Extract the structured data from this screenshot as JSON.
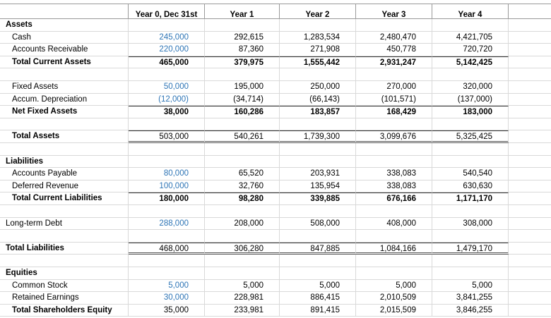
{
  "header": [
    "Year 0, Dec 31st",
    "Year 1",
    "Year 2",
    "Year 3",
    "Year 4"
  ],
  "rows": [
    {
      "label": "Assets"
    },
    {
      "label": "Cash",
      "values": [
        "245,000",
        "292,615",
        "1,283,534",
        "2,480,470",
        "4,421,705"
      ]
    },
    {
      "label": "Accounts Receivable",
      "values": [
        "220,000",
        "87,360",
        "271,908",
        "450,778",
        "720,720"
      ]
    },
    {
      "label": "Total Current Assets",
      "values": [
        "465,000",
        "379,975",
        "1,555,442",
        "2,931,247",
        "5,142,425"
      ]
    },
    {
      "label": "Fixed Assets",
      "values": [
        "50,000",
        "195,000",
        "250,000",
        "270,000",
        "320,000"
      ]
    },
    {
      "label": "Accum. Depreciation",
      "values": [
        "(12,000)",
        "(34,714)",
        "(66,143)",
        "(101,571)",
        "(137,000)"
      ]
    },
    {
      "label": "Net Fixed Assets",
      "values": [
        "38,000",
        "160,286",
        "183,857",
        "168,429",
        "183,000"
      ]
    },
    {
      "label": "Total Assets",
      "values": [
        "503,000",
        "540,261",
        "1,739,300",
        "3,099,676",
        "5,325,425"
      ]
    },
    {
      "label": "Liabilities"
    },
    {
      "label": "Accounts Payable",
      "values": [
        "80,000",
        "65,520",
        "203,931",
        "338,083",
        "540,540"
      ]
    },
    {
      "label": "Deferred Revenue",
      "values": [
        "100,000",
        "32,760",
        "135,954",
        "338,083",
        "630,630"
      ]
    },
    {
      "label": "Total Current Liabilities",
      "values": [
        "180,000",
        "98,280",
        "339,885",
        "676,166",
        "1,171,170"
      ]
    },
    {
      "label": "Long-term Debt",
      "values": [
        "288,000",
        "208,000",
        "508,000",
        "408,000",
        "308,000"
      ]
    },
    {
      "label": "Total Liabilities",
      "values": [
        "468,000",
        "306,280",
        "847,885",
        "1,084,166",
        "1,479,170"
      ]
    },
    {
      "label": "Equities"
    },
    {
      "label": "Common Stock",
      "values": [
        "5,000",
        "5,000",
        "5,000",
        "5,000",
        "5,000"
      ]
    },
    {
      "label": "Retained Earnings",
      "values": [
        "30,000",
        "228,981",
        "886,415",
        "2,010,509",
        "3,841,255"
      ]
    },
    {
      "label": "Total Shareholders Equity",
      "values": [
        "35,000",
        "233,981",
        "891,415",
        "2,015,509",
        "3,846,255"
      ]
    }
  ]
}
